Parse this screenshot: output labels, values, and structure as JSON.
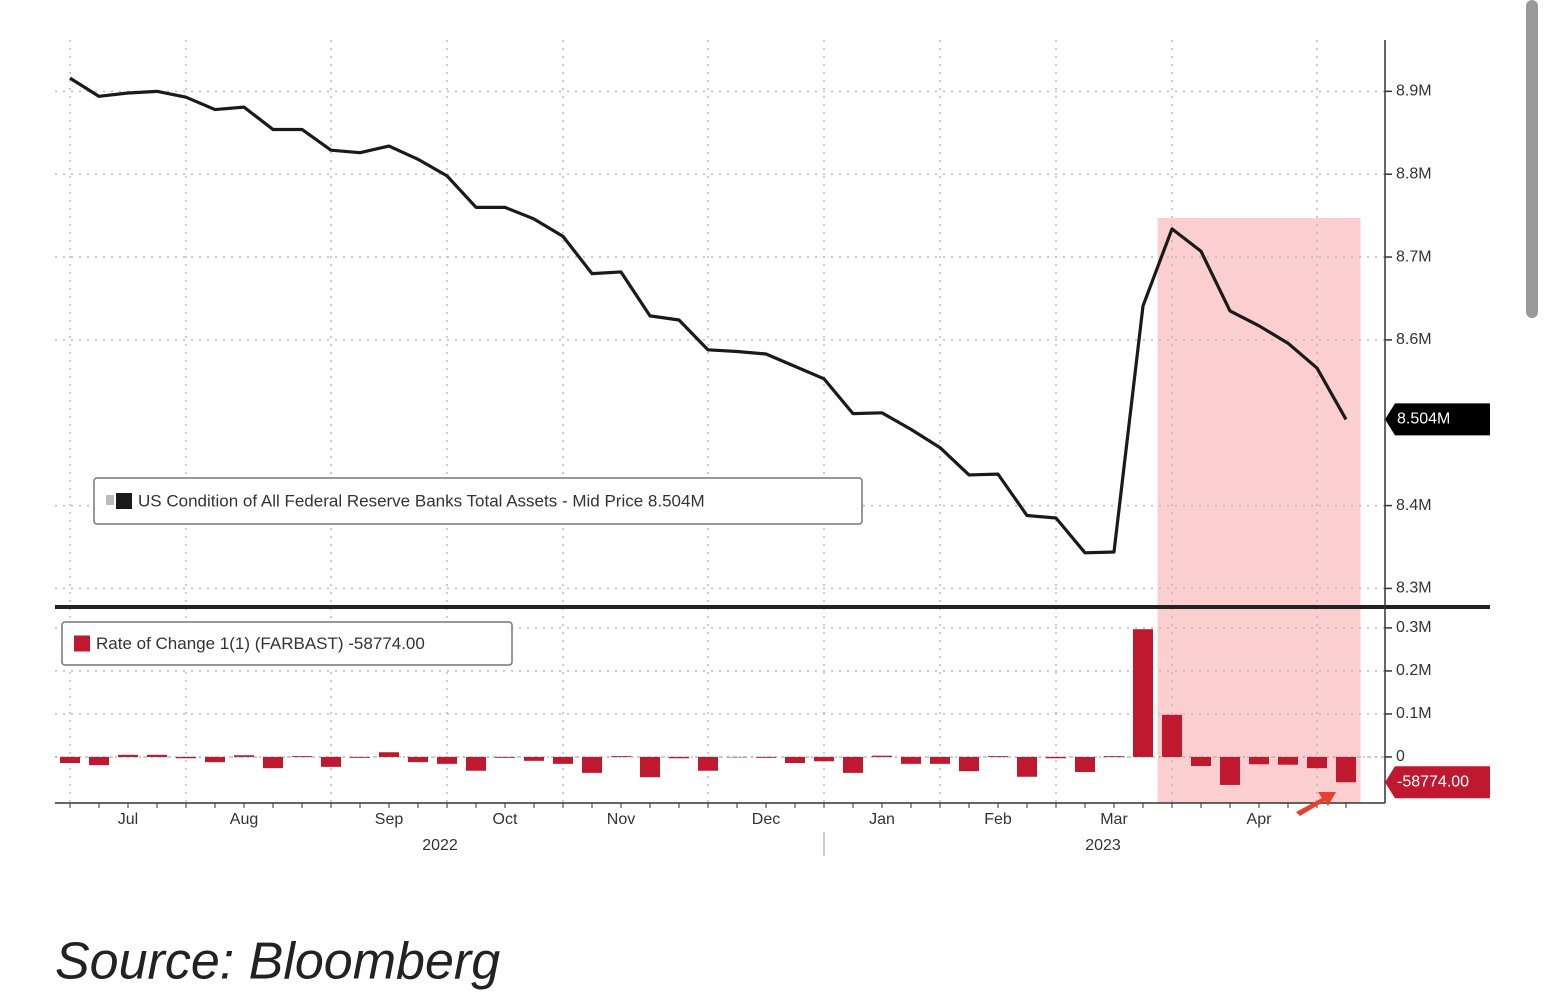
{
  "chart_data": [
    {
      "type": "line",
      "series": [
        {
          "name": "US Condition of All Federal Reserve Banks Total Assets - Mid Price 8.504M",
          "color": "#1a1a1a",
          "values": [
            8916000,
            8894000,
            8898000,
            8900000,
            8893000,
            8878000,
            8881000,
            8854000,
            8854000,
            8829000,
            8826000,
            8834000,
            8818000,
            8798000,
            8760000,
            8760000,
            8746000,
            8725000,
            8680000,
            8682000,
            8629000,
            8624000,
            8588000,
            8586000,
            8583000,
            8568000,
            8553000,
            8511000,
            8512000,
            8492000,
            8470000,
            8437000,
            8438000,
            8388000,
            8385000,
            8343000,
            8344000,
            8641000,
            8734000,
            8707000,
            8635000,
            8617000,
            8596000,
            8566000,
            8504000
          ],
          "value_labels": [
            null,
            null,
            null,
            null,
            null,
            null,
            null,
            null,
            null,
            null,
            null,
            null,
            null,
            null,
            null,
            null,
            null,
            null,
            null,
            null,
            null,
            null,
            null,
            null,
            null,
            null,
            null,
            null,
            null,
            null,
            null,
            null,
            null,
            null,
            null,
            null,
            null,
            null,
            null,
            null,
            null,
            null,
            null,
            null,
            "8.504M"
          ]
        }
      ],
      "ylim": [
        8280000,
        8962000
      ],
      "yticks": [
        {
          "value": 8900000,
          "label": "8.9M"
        },
        {
          "value": 8800000,
          "label": "8.8M"
        },
        {
          "value": 8700000,
          "label": "8.7M"
        },
        {
          "value": 8600000,
          "label": "8.6M"
        },
        {
          "value": 8400000,
          "label": "8.4M"
        },
        {
          "value": 8300000,
          "label": "8.3M"
        }
      ],
      "grid": true
    },
    {
      "type": "bar",
      "categories": [
        null,
        null,
        "Jul",
        null,
        null,
        null,
        "Aug",
        null,
        null,
        null,
        null,
        "Sep",
        null,
        null,
        null,
        "Oct",
        null,
        null,
        null,
        "Nov",
        null,
        null,
        null,
        null,
        "Dec",
        null,
        null,
        null,
        "Jan",
        null,
        null,
        null,
        "Feb",
        null,
        null,
        null,
        "Mar",
        null,
        null,
        null,
        null,
        "Apr",
        null,
        null,
        null
      ],
      "x_group_labels": [
        "2022",
        "2023"
      ],
      "series": [
        {
          "name": "Rate of Change 1(1) (FARBAST) -58774.00",
          "color": "#c0182e",
          "values": [
            -14000,
            -19000,
            5000,
            5000,
            -3000,
            -12000,
            4000,
            -26000,
            2000,
            -23000,
            -2000,
            11000,
            -12000,
            -16000,
            -32000,
            -2000,
            -9000,
            -16000,
            -37000,
            2000,
            -47000,
            -3000,
            -32000,
            -1000,
            -2000,
            -14000,
            -10000,
            -37000,
            3000,
            -16000,
            -16000,
            -33000,
            2000,
            -46000,
            -3000,
            -35000,
            2000,
            297000,
            98000,
            -21000,
            -65000,
            -17000,
            -18000,
            -26000,
            -58774
          ],
          "value_labels": [
            null,
            null,
            null,
            null,
            null,
            null,
            null,
            null,
            null,
            null,
            null,
            null,
            null,
            null,
            null,
            null,
            null,
            null,
            null,
            null,
            null,
            null,
            null,
            null,
            null,
            null,
            null,
            null,
            null,
            null,
            null,
            null,
            null,
            null,
            null,
            null,
            null,
            null,
            null,
            null,
            null,
            null,
            null,
            null,
            "-58774.00"
          ]
        }
      ],
      "ylim": [
        -107000,
        337000
      ],
      "yticks": [
        {
          "value": 300000,
          "label": "0.3M"
        },
        {
          "value": 200000,
          "label": "0.2M"
        },
        {
          "value": 100000,
          "label": "0.1M"
        },
        0
      ],
      "grid": true
    }
  ],
  "source": "Source: Bloomberg"
}
